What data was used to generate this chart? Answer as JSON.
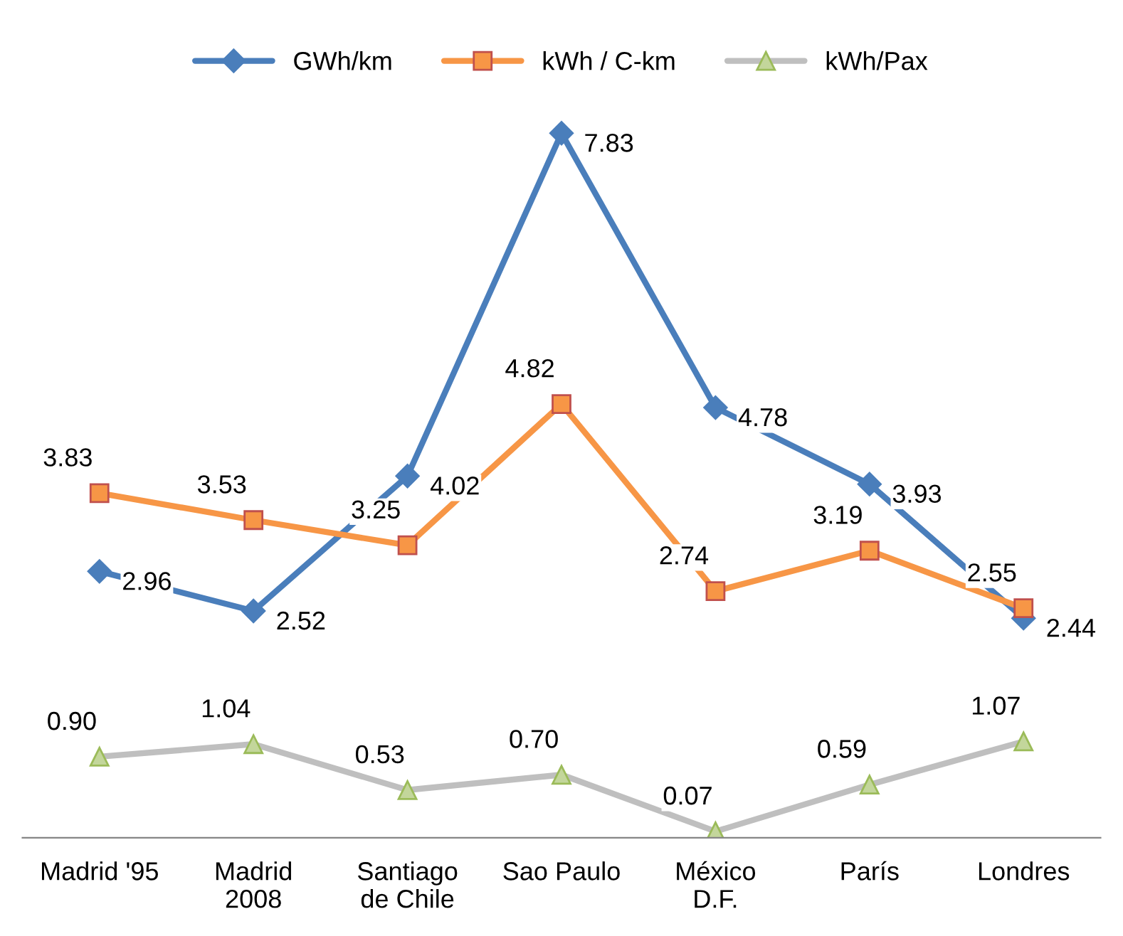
{
  "chart_data": {
    "type": "line",
    "categories": [
      "Madrid '95",
      "Madrid\n2008",
      "Santiago\nde Chile",
      "Sao Paulo",
      "México\nD.F.",
      "París",
      "Londres"
    ],
    "series": [
      {
        "name": "GWh/km",
        "color": "#4a7ebb",
        "marker": "diamond",
        "values": [
          2.96,
          2.52,
          4.02,
          7.83,
          4.78,
          3.93,
          2.44
        ],
        "value_labels": [
          "2.96",
          "2.52",
          "4.02",
          "7.83",
          "4.78",
          "3.93",
          "2.44"
        ]
      },
      {
        "name": "kWh / C-km",
        "color": "#f79646",
        "marker": "square",
        "values": [
          3.83,
          3.53,
          3.25,
          4.82,
          2.74,
          3.19,
          2.55
        ],
        "value_labels": [
          "3.83",
          "3.53",
          "3.25",
          "4.82",
          "2.74",
          "3.19",
          "2.55"
        ]
      },
      {
        "name": "kWh/Pax",
        "color": "#bfbfbf",
        "marker": "triangle",
        "values": [
          0.9,
          1.04,
          0.53,
          0.7,
          0.07,
          0.59,
          1.07
        ],
        "value_labels": [
          "0.90",
          "1.04",
          "0.53",
          "0.70",
          "0.07",
          "0.59",
          "1.07"
        ]
      }
    ],
    "tick_labels": "x",
    "legend": "top",
    "grid": false
  }
}
